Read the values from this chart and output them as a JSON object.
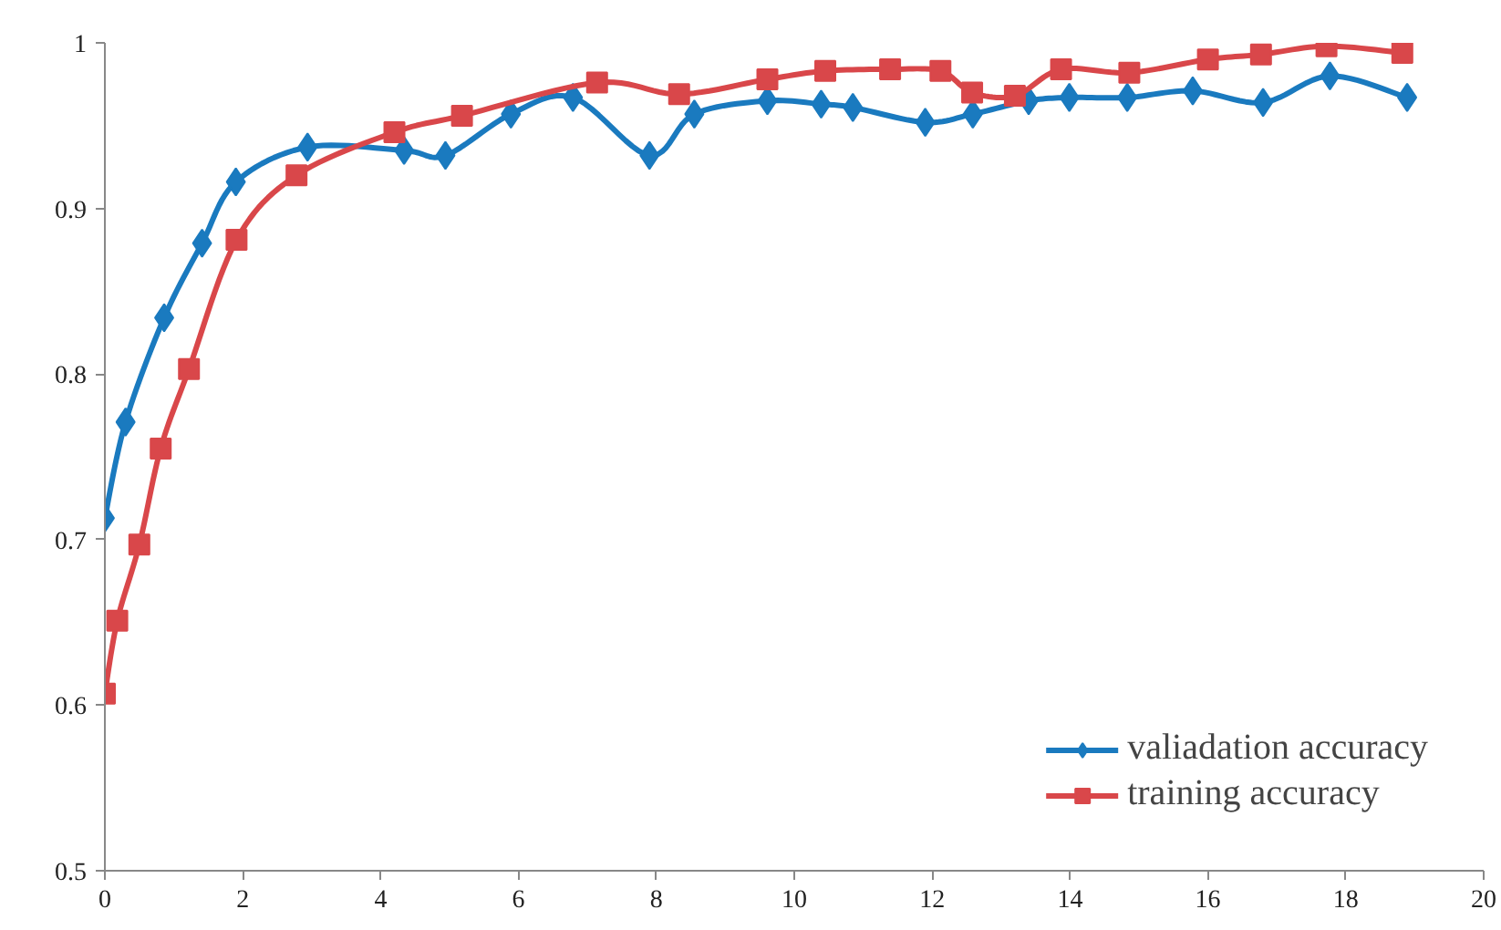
{
  "chart_data": {
    "type": "line",
    "xlim": [
      0,
      20
    ],
    "ylim": [
      0.5,
      1
    ],
    "xticks": [
      0,
      2,
      4,
      6,
      8,
      10,
      12,
      14,
      16,
      18,
      20
    ],
    "yticks": [
      0.5,
      0.6,
      0.7,
      0.8,
      0.9,
      1
    ],
    "grid": false,
    "legend": "bottom right",
    "line_style": "solid",
    "series": [
      {
        "name": "valiadation accuracy",
        "color": "#1a7abf",
        "marker": "diamond",
        "x": [
          0,
          0.3,
          0.86,
          1.41,
          1.9,
          2.94,
          4.34,
          4.94,
          5.89,
          6.79,
          7.9,
          8.55,
          9.61,
          10.39,
          10.85,
          11.9,
          12.59,
          13.4,
          13.99,
          14.83,
          15.78,
          16.8,
          17.77,
          18.89
        ],
        "values": [
          0.713,
          0.771,
          0.834,
          0.879,
          0.916,
          0.937,
          0.935,
          0.932,
          0.957,
          0.967,
          0.932,
          0.957,
          0.965,
          0.963,
          0.961,
          0.952,
          0.957,
          0.965,
          0.967,
          0.967,
          0.971,
          0.964,
          0.98,
          0.967
        ]
      },
      {
        "name": "training accuracy",
        "color": "#d9474a",
        "marker": "square",
        "x": [
          0,
          0.18,
          0.5,
          0.81,
          1.22,
          1.91,
          2.78,
          4.2,
          5.18,
          7.14,
          8.33,
          9.61,
          10.45,
          11.39,
          12.12,
          12.58,
          13.2,
          13.87,
          14.86,
          16.0,
          16.77,
          17.72,
          18.82
        ],
        "values": [
          0.607,
          0.651,
          0.697,
          0.755,
          0.803,
          0.881,
          0.92,
          0.946,
          0.956,
          0.976,
          0.969,
          0.978,
          0.983,
          0.984,
          0.983,
          0.97,
          0.968,
          0.984,
          0.982,
          0.99,
          0.993,
          0.998,
          0.994
        ]
      }
    ]
  }
}
